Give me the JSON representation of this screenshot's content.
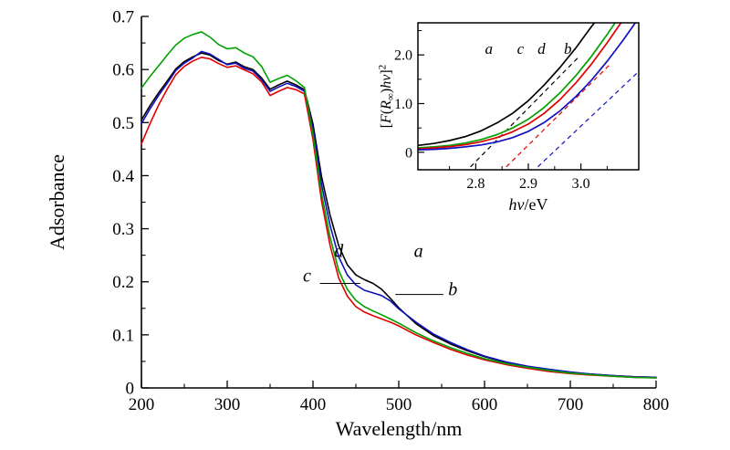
{
  "figure": {
    "background": "#ffffff"
  },
  "chart_data": [
    {
      "id": "main",
      "type": "line",
      "title": "",
      "xlabel": "Wavelength/nm",
      "ylabel": "Adsorbance",
      "xlim": [
        200,
        800
      ],
      "ylim": [
        0,
        0.7
      ],
      "grid": false,
      "x_major_ticks": [
        200,
        300,
        400,
        500,
        600,
        700,
        800
      ],
      "x_tick_labels": [
        "200",
        "300",
        "400",
        "500",
        "600",
        "700",
        "800"
      ],
      "x_minor_ticks": [
        250,
        350,
        450,
        550,
        650,
        750
      ],
      "y_major_ticks": [
        0,
        0.1,
        0.2,
        0.3,
        0.4,
        0.5,
        0.6,
        0.7
      ],
      "y_tick_labels": [
        "0",
        "0.1",
        "0.2",
        "0.3",
        "0.4",
        "0.5",
        "0.6",
        "0.7"
      ],
      "y_minor_ticks": [
        0.05,
        0.15,
        0.25,
        0.35,
        0.45,
        0.55,
        0.65
      ],
      "x": [
        200,
        210,
        220,
        230,
        240,
        250,
        260,
        270,
        280,
        290,
        300,
        310,
        320,
        330,
        340,
        350,
        360,
        370,
        380,
        390,
        400,
        410,
        420,
        430,
        440,
        450,
        460,
        470,
        480,
        490,
        500,
        520,
        540,
        560,
        580,
        600,
        625,
        650,
        675,
        700,
        725,
        750,
        775,
        800
      ],
      "series": [
        {
          "name": "a",
          "color": "#000000",
          "values": [
            0.505,
            0.532,
            0.556,
            0.578,
            0.601,
            0.615,
            0.624,
            0.631,
            0.627,
            0.617,
            0.61,
            0.614,
            0.605,
            0.6,
            0.584,
            0.563,
            0.571,
            0.578,
            0.571,
            0.562,
            0.497,
            0.398,
            0.325,
            0.268,
            0.232,
            0.213,
            0.204,
            0.197,
            0.186,
            0.169,
            0.151,
            0.121,
            0.099,
            0.083,
            0.07,
            0.059,
            0.048,
            0.04,
            0.034,
            0.029,
            0.026,
            0.023,
            0.021,
            0.02
          ]
        },
        {
          "name": "b",
          "color": "#1010c0",
          "values": [
            0.498,
            0.526,
            0.551,
            0.574,
            0.598,
            0.612,
            0.622,
            0.634,
            0.629,
            0.619,
            0.609,
            0.612,
            0.602,
            0.597,
            0.581,
            0.559,
            0.567,
            0.574,
            0.568,
            0.559,
            0.488,
            0.383,
            0.306,
            0.247,
            0.213,
            0.194,
            0.184,
            0.179,
            0.174,
            0.164,
            0.149,
            0.124,
            0.102,
            0.086,
            0.072,
            0.06,
            0.049,
            0.041,
            0.035,
            0.03,
            0.026,
            0.023,
            0.021,
            0.02
          ]
        },
        {
          "name": "c",
          "color": "#e00000",
          "values": [
            0.46,
            0.498,
            0.533,
            0.563,
            0.59,
            0.606,
            0.616,
            0.623,
            0.62,
            0.611,
            0.604,
            0.607,
            0.599,
            0.592,
            0.577,
            0.551,
            0.559,
            0.566,
            0.562,
            0.554,
            0.468,
            0.352,
            0.268,
            0.207,
            0.173,
            0.153,
            0.143,
            0.136,
            0.13,
            0.124,
            0.117,
            0.1,
            0.086,
            0.073,
            0.062,
            0.053,
            0.044,
            0.037,
            0.031,
            0.027,
            0.024,
            0.022,
            0.02,
            0.019
          ]
        },
        {
          "name": "d",
          "color": "#00a000",
          "values": [
            0.565,
            0.587,
            0.607,
            0.627,
            0.646,
            0.659,
            0.666,
            0.671,
            0.661,
            0.647,
            0.639,
            0.641,
            0.631,
            0.624,
            0.606,
            0.576,
            0.583,
            0.589,
            0.579,
            0.566,
            0.478,
            0.366,
            0.284,
            0.221,
            0.186,
            0.165,
            0.153,
            0.145,
            0.138,
            0.13,
            0.122,
            0.104,
            0.089,
            0.076,
            0.065,
            0.055,
            0.046,
            0.039,
            0.033,
            0.028,
            0.025,
            0.022,
            0.02,
            0.019
          ]
        }
      ],
      "annotations": [
        {
          "text": "d",
          "x": 430,
          "y": 0.247
        },
        {
          "text": "c",
          "x": 393,
          "y": 0.2
        },
        {
          "text": "a",
          "x": 523,
          "y": 0.247
        },
        {
          "text": "b",
          "x": 563,
          "y": 0.175
        }
      ],
      "leader_lines": [
        {
          "x1": 408,
          "y1": 0.197,
          "x2": 455,
          "y2": 0.197
        },
        {
          "x1": 496,
          "y1": 0.176,
          "x2": 552,
          "y2": 0.176
        }
      ]
    },
    {
      "id": "inset",
      "type": "line",
      "title": "",
      "xlabel": "hν/eV",
      "xlabel_parts": [
        {
          "t": "h",
          "i": true
        },
        {
          "t": "ν",
          "i": true
        },
        {
          "t": "/eV",
          "i": false
        }
      ],
      "ylabel": "[F(R∞)hν]²",
      "ylabel_parts": [
        {
          "t": "[",
          "i": false
        },
        {
          "t": "F",
          "i": true
        },
        {
          "t": "(",
          "i": false
        },
        {
          "t": "R",
          "i": true
        },
        {
          "t": "∞",
          "sub": true
        },
        {
          "t": ")",
          "i": false
        },
        {
          "t": "h",
          "i": true
        },
        {
          "t": "ν",
          "i": true
        },
        {
          "t": "]",
          "i": false
        },
        {
          "t": "2",
          "sup": true
        }
      ],
      "xlim": [
        2.69,
        3.11
      ],
      "ylim": [
        -0.36,
        2.66
      ],
      "grid": false,
      "x_major_ticks": [
        2.8,
        2.9,
        3.0
      ],
      "x_tick_labels": [
        "2.8",
        "2.9",
        "3.0"
      ],
      "x_minor_ticks": [
        2.75,
        2.85,
        2.95,
        3.05
      ],
      "y_major_ticks": [
        0,
        1.0,
        2.0
      ],
      "y_tick_labels": [
        "0",
        "1.0",
        "2.0"
      ],
      "y_minor_ticks": [
        0.5,
        1.5,
        2.5
      ],
      "x": [
        2.69,
        2.72,
        2.75,
        2.78,
        2.81,
        2.84,
        2.87,
        2.9,
        2.93,
        2.96,
        2.99,
        3.02,
        3.05,
        3.08,
        3.11
      ],
      "series": [
        {
          "name": "a",
          "color": "#000000",
          "values": [
            0.14,
            0.18,
            0.24,
            0.32,
            0.44,
            0.6,
            0.8,
            1.06,
            1.38,
            1.74,
            2.14,
            2.58,
            3.0,
            3.4,
            3.8
          ]
        },
        {
          "name": "c",
          "color": "#00a000",
          "values": [
            0.09,
            0.11,
            0.14,
            0.19,
            0.26,
            0.36,
            0.5,
            0.68,
            0.92,
            1.22,
            1.57,
            1.97,
            2.42,
            2.9,
            3.4
          ]
        },
        {
          "name": "d",
          "color": "#e00000",
          "values": [
            0.07,
            0.09,
            0.115,
            0.155,
            0.215,
            0.3,
            0.42,
            0.58,
            0.8,
            1.08,
            1.42,
            1.81,
            2.25,
            2.72,
            3.2
          ]
        },
        {
          "name": "b",
          "color": "#1010c0",
          "values": [
            0.05,
            0.06,
            0.08,
            0.11,
            0.15,
            0.21,
            0.3,
            0.43,
            0.61,
            0.85,
            1.14,
            1.48,
            1.87,
            2.3,
            2.76
          ]
        }
      ],
      "dashed_lines": [
        {
          "color": "#000000",
          "x1": 2.79,
          "y1": -0.3,
          "x2": 2.995,
          "y2": 1.95
        },
        {
          "color": "#e00000",
          "x1": 2.858,
          "y1": -0.3,
          "x2": 3.055,
          "y2": 1.8
        },
        {
          "color": "#1010c0",
          "x1": 2.918,
          "y1": -0.3,
          "x2": 3.11,
          "y2": 1.66
        }
      ],
      "annotations": [
        {
          "text": "a",
          "x": 2.825,
          "y": 2.02
        },
        {
          "text": "c",
          "x": 2.885,
          "y": 2.02
        },
        {
          "text": "d",
          "x": 2.925,
          "y": 2.02
        },
        {
          "text": "b",
          "x": 2.975,
          "y": 2.02
        }
      ]
    }
  ]
}
